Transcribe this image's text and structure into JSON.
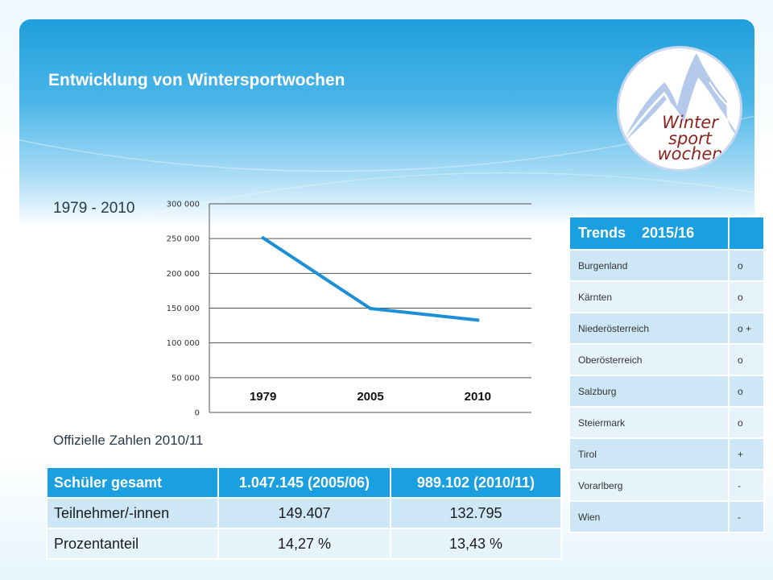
{
  "slide": {
    "title": "Entwicklung von Wintersportwochen",
    "subtitle": "1979 - 2010",
    "official_label": "Offizielle Zahlen 2010/11"
  },
  "logo": {
    "line1": "Winter",
    "line2": "sport",
    "line3": "wochen",
    "text_color": "#8e2420"
  },
  "chart_data": {
    "type": "line",
    "categories": [
      "1979",
      "2005",
      "2010"
    ],
    "series": [
      {
        "values": [
          251000,
          149407,
          132795
        ],
        "color": "#1d8fd6"
      }
    ],
    "yticks": [
      "0",
      "50 000",
      "100 000",
      "150 000",
      "200 000",
      "250 000",
      "300 000"
    ],
    "ylim": [
      0,
      300000
    ],
    "grid": true,
    "title": "",
    "xlabel": "",
    "ylabel": ""
  },
  "stats_table": {
    "header": [
      "Schüler gesamt",
      "1.047.145 (2005/06)",
      "989.102 (2010/11)"
    ],
    "rows": [
      [
        "Teilnehmer/-innen",
        "149.407",
        "132.795"
      ],
      [
        "Prozentanteil",
        "14,27 %",
        "13,43 %"
      ]
    ]
  },
  "trends_table": {
    "header": [
      "Trends    2015/16",
      ""
    ],
    "rows": [
      [
        "Burgenland",
        "o"
      ],
      [
        "Kärnten",
        "o"
      ],
      [
        "Niederösterreich",
        "o +"
      ],
      [
        "Oberösterreich",
        "o"
      ],
      [
        "Salzburg",
        "o"
      ],
      [
        "Steiermark",
        "o"
      ],
      [
        "Tirol",
        "+"
      ],
      [
        "Vorarlberg",
        "-"
      ],
      [
        "Wien",
        "-"
      ]
    ]
  },
  "colors": {
    "accent": "#1aa0e0",
    "header_blue": "#1f9fdc",
    "row_dark": "#cde7f6",
    "row_light": "#e7f3fb"
  }
}
